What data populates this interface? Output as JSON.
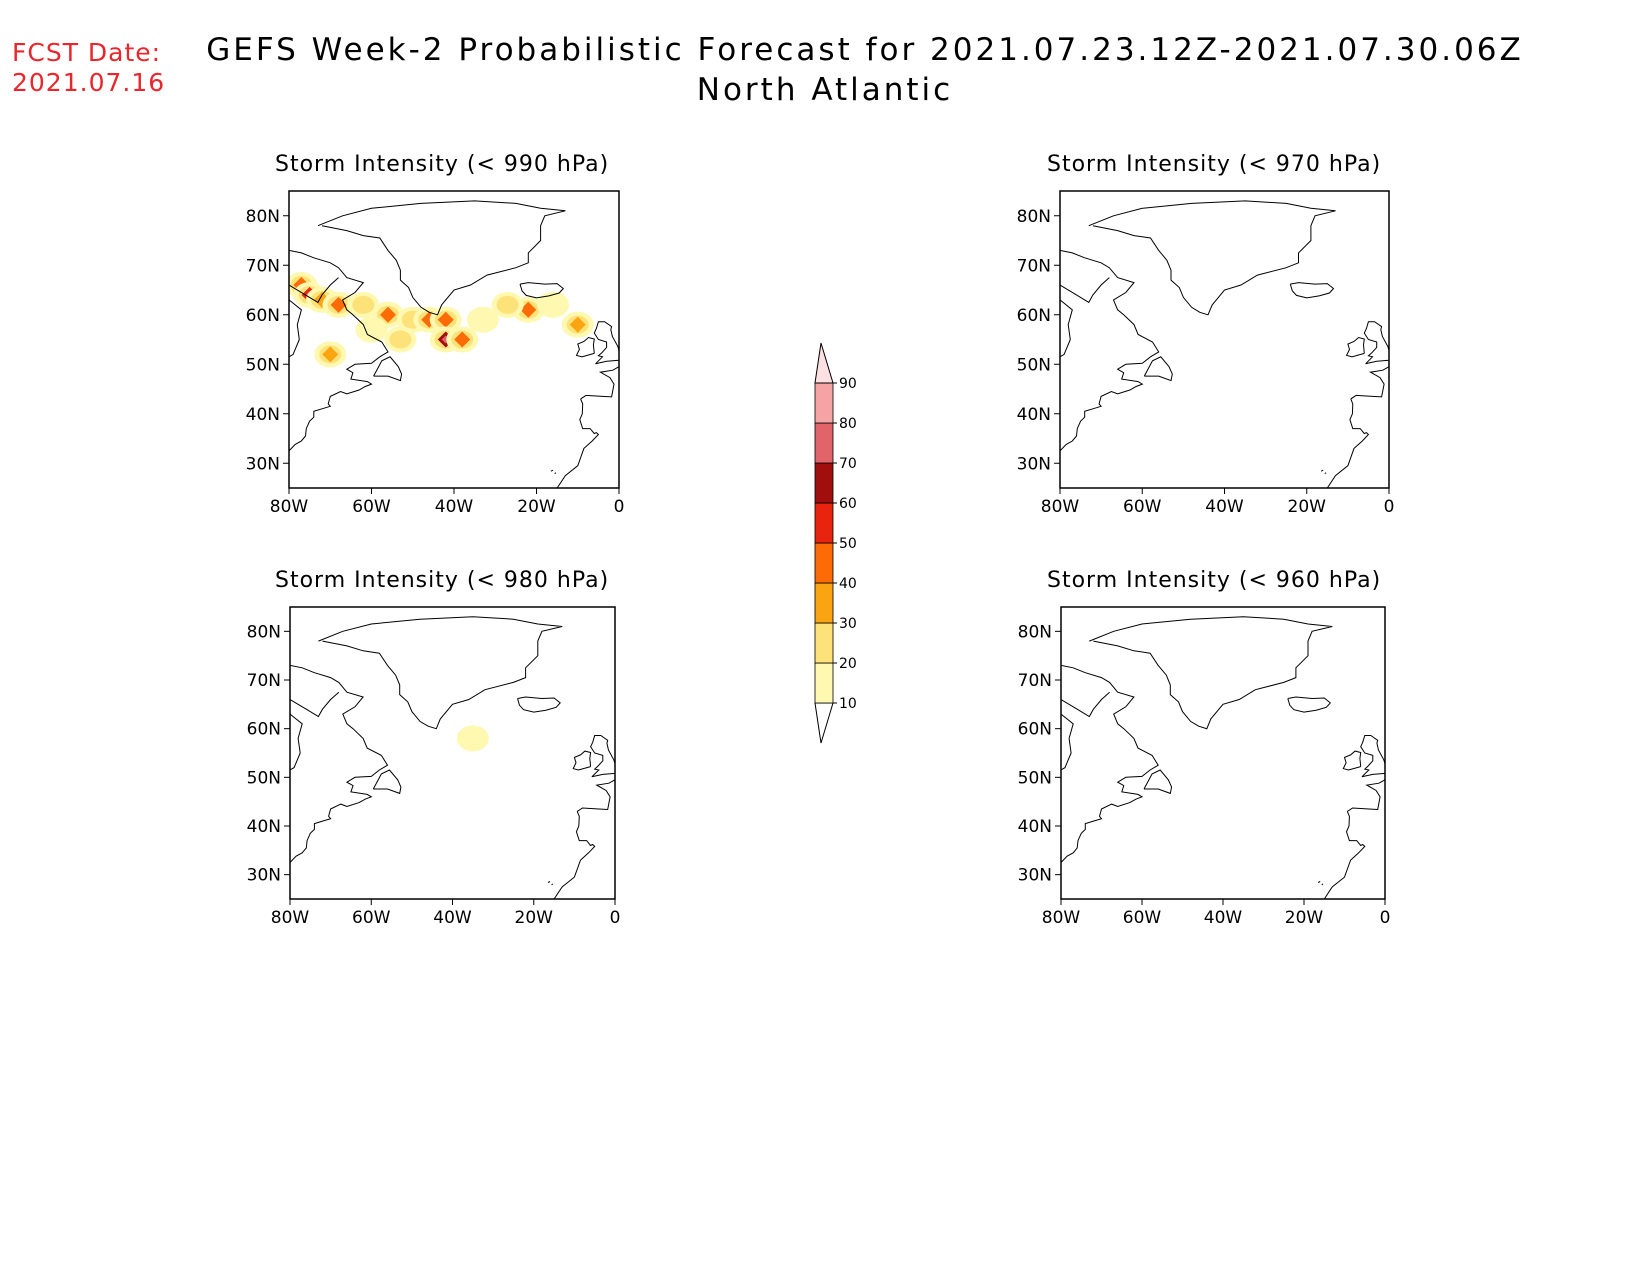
{
  "header": {
    "fcst_label": "FCST Date:",
    "fcst_date": "2021.07.16",
    "title_line1": "GEFS Week-2 Probabilistic Forecast for 2021.07.23.12Z-2021.07.30.06Z",
    "title_line2": "North Atlantic"
  },
  "panels": [
    {
      "id": "p990",
      "title": "Storm Intensity (< 990 hPa)"
    },
    {
      "id": "p970",
      "title": "Storm Intensity (< 970 hPa)"
    },
    {
      "id": "p980",
      "title": "Storm Intensity (< 980 hPa)"
    },
    {
      "id": "p960",
      "title": "Storm Intensity (< 960 hPa)"
    }
  ],
  "axes": {
    "lat_labels": [
      "80N",
      "70N",
      "60N",
      "50N",
      "40N",
      "30N"
    ],
    "lat_values": [
      80,
      70,
      60,
      50,
      40,
      30
    ],
    "lon_labels": [
      "80W",
      "60W",
      "40W",
      "20W",
      "0"
    ],
    "lon_values": [
      -80,
      -60,
      -40,
      -20,
      0
    ],
    "lat_range": [
      25,
      85
    ],
    "lon_range": [
      -80,
      0
    ]
  },
  "colorbar": {
    "levels": [
      "10",
      "20",
      "30",
      "40",
      "50",
      "60",
      "70",
      "80",
      "90"
    ],
    "colors": [
      "#fff8b0",
      "#fde27a",
      "#fba411",
      "#fc6b06",
      "#e8230e",
      "#a00e0e",
      "#e0646a",
      "#f5a3a5",
      "#fde0e2"
    ]
  },
  "probability_fields": {
    "p990": [
      {
        "lon": -77,
        "lat": 66,
        "level": 3
      },
      {
        "lon": -75,
        "lat": 64,
        "level": 4
      },
      {
        "lon": -72,
        "lat": 63,
        "level": 2
      },
      {
        "lon": -68,
        "lat": 62,
        "level": 3
      },
      {
        "lon": -62,
        "lat": 62,
        "level": 1
      },
      {
        "lon": -56,
        "lat": 60,
        "level": 3
      },
      {
        "lon": -50,
        "lat": 59,
        "level": 1
      },
      {
        "lon": -46,
        "lat": 59,
        "level": 3
      },
      {
        "lon": -42,
        "lat": 59,
        "level": 3
      },
      {
        "lon": -42,
        "lat": 55,
        "level": 5
      },
      {
        "lon": -38,
        "lat": 55,
        "level": 3
      },
      {
        "lon": -22,
        "lat": 61,
        "level": 3
      },
      {
        "lon": -27,
        "lat": 62,
        "level": 1
      },
      {
        "lon": -10,
        "lat": 58,
        "level": 2
      },
      {
        "lon": -70,
        "lat": 52,
        "level": 2
      },
      {
        "lon": -53,
        "lat": 55,
        "level": 1
      },
      {
        "lon": -60,
        "lat": 57,
        "level": 0
      },
      {
        "lon": -33,
        "lat": 59,
        "level": 0
      },
      {
        "lon": -16,
        "lat": 62,
        "level": 0
      }
    ],
    "p980": [
      {
        "lon": -35,
        "lat": 58,
        "level": 0
      }
    ],
    "p970": [],
    "p960": []
  }
}
